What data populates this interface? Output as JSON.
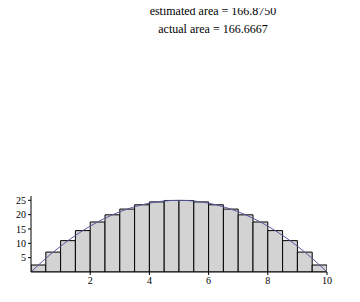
{
  "chart_data": {
    "type": "histogram",
    "title": "estimated area = 166.8750",
    "subtitle": "actual area = 166.6667",
    "bins": [
      0,
      0.5,
      1,
      1.5,
      2,
      2.5,
      3,
      3.5,
      4,
      4.5,
      5,
      5.5,
      6,
      6.5,
      7,
      7.5,
      8,
      8.5,
      9,
      9.5,
      10
    ],
    "values": [
      2.4375,
      6.9375,
      10.9375,
      14.4375,
      17.4375,
      19.9375,
      21.9375,
      23.4375,
      24.4375,
      24.9375,
      24.9375,
      24.4375,
      23.4375,
      21.9375,
      19.9375,
      17.4375,
      14.4375,
      10.9375,
      6.9375,
      2.4375
    ],
    "color": "#d3d3d3",
    "line": {
      "type": "line",
      "color": "#5a5aa0",
      "x": [
        0,
        0.5,
        1,
        1.5,
        2,
        2.5,
        3,
        3.5,
        4,
        4.5,
        5,
        5.5,
        6,
        6.5,
        7,
        7.5,
        8,
        8.5,
        9,
        9.5,
        10
      ],
      "values": [
        0,
        4.75,
        9,
        12.75,
        16,
        18.75,
        21,
        22.75,
        24,
        24.75,
        25,
        24.75,
        24,
        22.75,
        21,
        18.75,
        16,
        12.75,
        9,
        4.75,
        0
      ]
    },
    "xlim": [
      0,
      10
    ],
    "xticks": [
      2,
      4,
      6,
      8,
      10
    ],
    "ylim": [
      0,
      26.5
    ],
    "yticks": [
      5,
      10,
      15,
      20,
      25
    ],
    "grid": false
  }
}
